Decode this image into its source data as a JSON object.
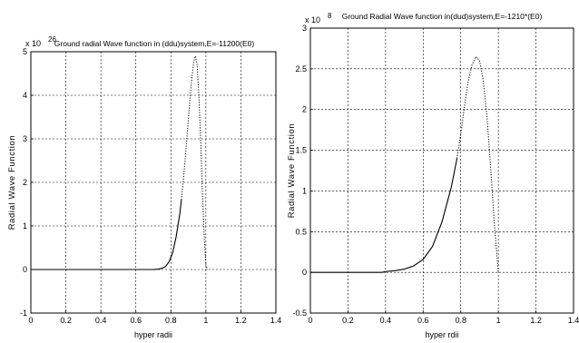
{
  "chart_data": [
    {
      "type": "line",
      "title": "Ground radial Wave function in (ddu)system,E=-11200(E0)",
      "xlabel": "hyper radii",
      "ylabel": "Radial Wave Function",
      "y_exponent": {
        "base": "x 10",
        "power": "26"
      },
      "xlim": [
        0,
        1.4
      ],
      "ylim": [
        -1,
        5
      ],
      "xticks": [
        0,
        0.2,
        0.4,
        0.6,
        0.8,
        1,
        1.2,
        1.4
      ],
      "yticks": [
        -1,
        0,
        1,
        2,
        3,
        4,
        5
      ],
      "grid": true,
      "series": [
        {
          "style_solid_then_dotted_at_x": 0.86,
          "x": [
            0,
            0.7,
            0.73,
            0.75,
            0.77,
            0.79,
            0.81,
            0.83,
            0.85,
            0.86,
            0.87,
            0.88,
            0.89,
            0.9,
            0.91,
            0.92,
            0.93,
            0.94,
            0.95,
            0.96,
            0.97,
            0.98,
            0.99,
            1.0,
            1.01
          ],
          "y": [
            0,
            0.0,
            0.01,
            0.03,
            0.07,
            0.18,
            0.38,
            0.75,
            1.25,
            1.6,
            2.0,
            2.45,
            2.95,
            3.45,
            3.95,
            4.4,
            4.75,
            4.9,
            4.7,
            4.0,
            3.0,
            1.8,
            0.8,
            0.1,
            0.0
          ]
        }
      ]
    },
    {
      "type": "line",
      "title": "Ground Radial Wave function in(dud)system,E=-1210*(E0)",
      "xlabel": "hyper rdii",
      "ylabel": "Radial Wave Function",
      "y_exponent": {
        "base": "x 10",
        "power": "8"
      },
      "xlim": [
        0,
        1.4
      ],
      "ylim": [
        -0.5,
        3
      ],
      "xticks": [
        0,
        0.2,
        0.4,
        0.6,
        0.8,
        1,
        1.2,
        1.4
      ],
      "yticks": [
        -0.5,
        0,
        0.5,
        1,
        1.5,
        2,
        2.5,
        3
      ],
      "grid": true,
      "series": [
        {
          "style_solid_then_dotted_at_x": 0.78,
          "x": [
            0,
            0.38,
            0.4,
            0.45,
            0.5,
            0.55,
            0.6,
            0.65,
            0.7,
            0.75,
            0.78,
            0.8,
            0.82,
            0.84,
            0.86,
            0.88,
            0.9,
            0.92,
            0.94,
            0.96,
            0.98,
            1.0
          ],
          "y": [
            0,
            0.0,
            0.01,
            0.02,
            0.04,
            0.08,
            0.16,
            0.32,
            0.62,
            1.05,
            1.4,
            1.7,
            2.05,
            2.35,
            2.55,
            2.65,
            2.6,
            2.35,
            1.9,
            1.25,
            0.55,
            0.0
          ]
        }
      ]
    }
  ]
}
